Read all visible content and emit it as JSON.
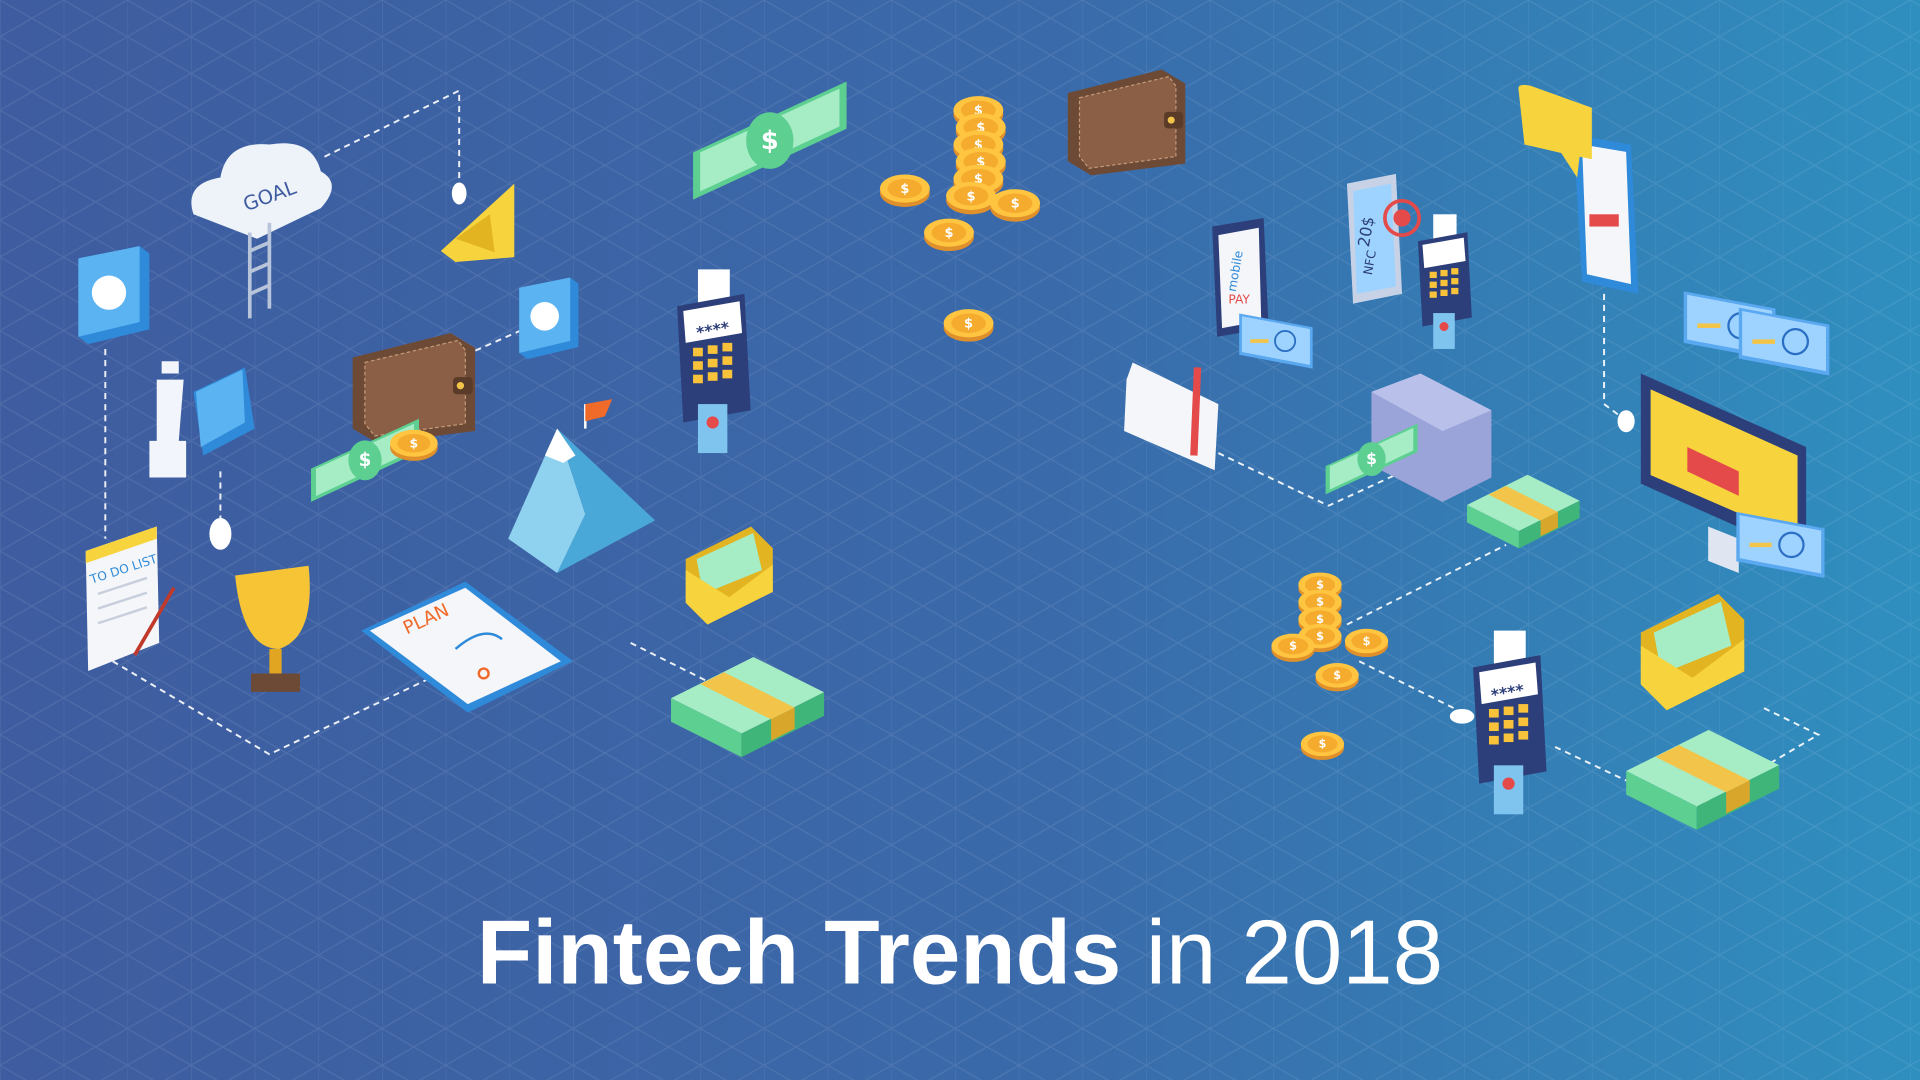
{
  "title": {
    "bold": "Fintech Trends",
    "light": "in 2018"
  },
  "illustration": {
    "goal": "GOAL",
    "todo": "TO DO LIST",
    "plan": "PLAN",
    "pin_left": "****",
    "pin_right": "****",
    "nfc_amount": "20$",
    "nfc": "NFC",
    "mobile": "mobile",
    "pay": "PAY",
    "currency": "$"
  }
}
